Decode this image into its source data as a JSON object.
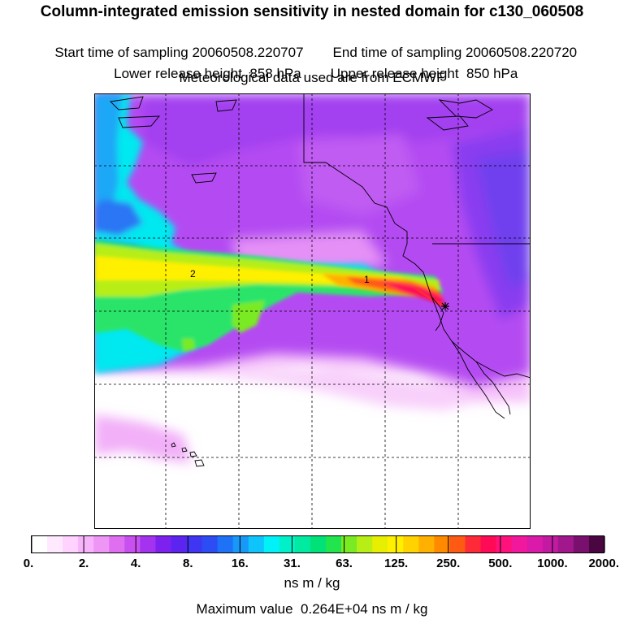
{
  "header": {
    "title": "Column-integrated emission sensitivity in nested domain for c130_060508",
    "start_label": "Start time of sampling 20060508.220707",
    "end_label": "End time of sampling 20060508.220720",
    "lower_label": "Lower release height  858 hPa",
    "upper_label": "Upper release height  850 hPa",
    "met_label": "Meteorological data used are from ECMWF"
  },
  "map": {
    "contour_labels": [
      "2",
      "1"
    ],
    "grid": "dashed lat/lon grid",
    "plume": "emission sensitivity plume extending west from release point",
    "release_marker": "star"
  },
  "colorbar": {
    "tick_labels": [
      "0.",
      "2.",
      "4.",
      "8.",
      "16.",
      "31.",
      "63.",
      "125.",
      "250.",
      "500.",
      "1000.",
      "2000."
    ],
    "colors": [
      "#ffffff",
      "#ffe9ff",
      "#ffd2ff",
      "#f7b3fb",
      "#ee96f6",
      "#df6ff0",
      "#c84ff0",
      "#a433f0",
      "#7d22ee",
      "#5d24f0",
      "#3f35f2",
      "#2c4cf4",
      "#1e72f6",
      "#1898f8",
      "#0ec4fb",
      "#00f2f8",
      "#00f0c8",
      "#00eaa2",
      "#00e278",
      "#22e44c",
      "#7aea22",
      "#b6ee16",
      "#e8ee00",
      "#fff000",
      "#ffd200",
      "#ffb000",
      "#ff8a00",
      "#ff5a14",
      "#ff2a38",
      "#ff0a56",
      "#ff127c",
      "#f0189c",
      "#da1aa8",
      "#c21aa0",
      "#a0188c",
      "#7a106e",
      "#4a0640"
    ],
    "units": "ns m / kg"
  },
  "footer": {
    "max_label": "Maximum value  0.264E+04 ns m / kg"
  }
}
